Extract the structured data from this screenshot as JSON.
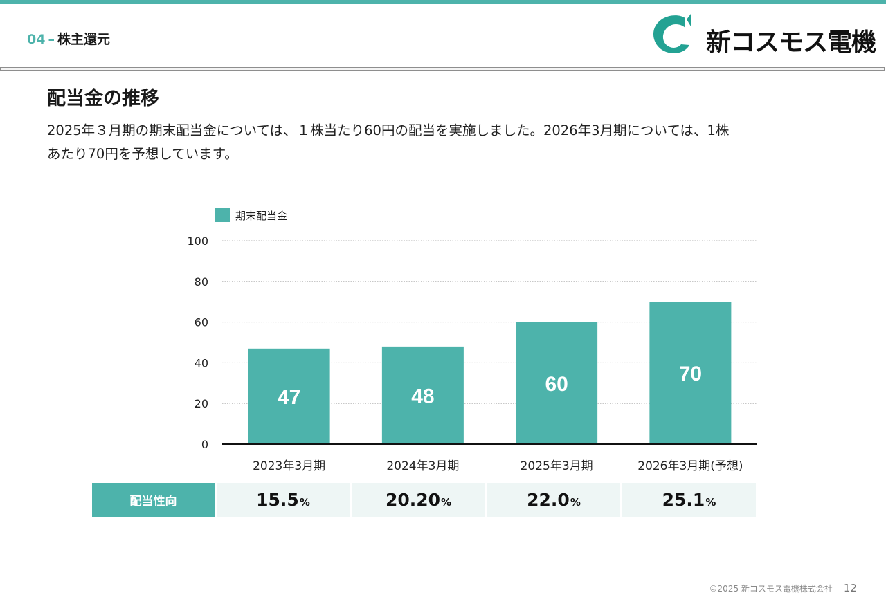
{
  "header": {
    "section_number": "04",
    "section_dash": "–",
    "section_title": "株主還元",
    "logo_text": "新コスモス電機"
  },
  "page": {
    "heading": "配当金の推移",
    "intro_line1": "2025年３月期の期末配当金については、１株当たり60円の配当を実施しました。2026年3月期については、1株",
    "intro_line2": "あたり70円を予想しています。"
  },
  "colors": {
    "accent": "#4db3ab",
    "table_cell": "#eef6f5"
  },
  "chart_data": {
    "type": "bar",
    "categories": [
      "2023年3月期",
      "2024年3月期",
      "2025年3月期",
      "2026年3月期(予想)"
    ],
    "series": [
      {
        "name": "期末配当金",
        "values": [
          47,
          48,
          60,
          70
        ]
      }
    ],
    "data_labels": [
      "47",
      "48",
      "60",
      "70"
    ],
    "ylim": [
      0,
      100
    ],
    "yticks": [
      0,
      20,
      40,
      60,
      80,
      100
    ],
    "grid": true,
    "legend": "top-left"
  },
  "payout_ratio": {
    "label": "配当性向",
    "values": [
      {
        "value": "15.5",
        "unit": "%"
      },
      {
        "value": "20.20",
        "unit": "%"
      },
      {
        "value": "22.0",
        "unit": "%"
      },
      {
        "value": "25.1",
        "unit": "%"
      }
    ]
  },
  "footer": {
    "copyright": "©2025 新コスモス電機株式会社",
    "page_number": "12"
  }
}
